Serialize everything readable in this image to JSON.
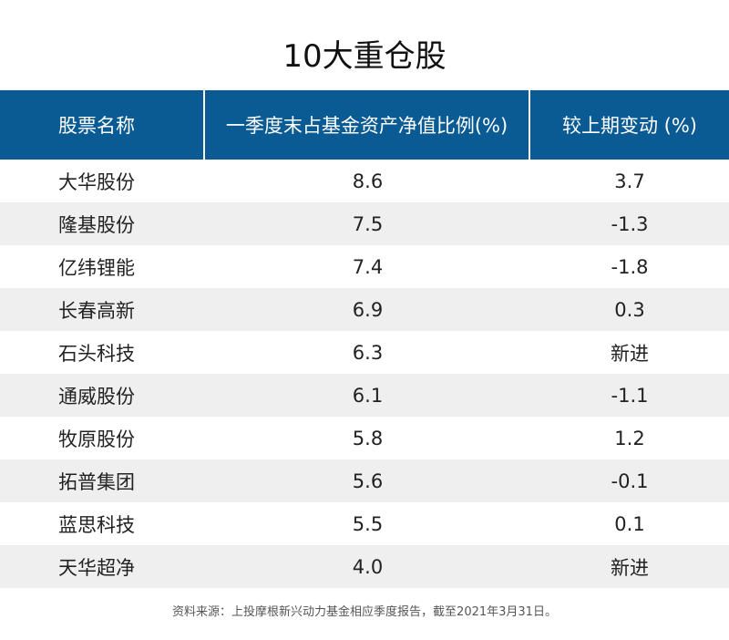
{
  "title": "10大重仓股",
  "table": {
    "headers": [
      "股票名称",
      "一季度末占基金资产净值比例(%)",
      "较上期变动 (%)"
    ],
    "rows": [
      [
        "大华股份",
        "8.6",
        "3.7"
      ],
      [
        "隆基股份",
        "7.5",
        "-1.3"
      ],
      [
        "亿纬锂能",
        "7.4",
        "-1.8"
      ],
      [
        "长春高新",
        "6.9",
        "0.3"
      ],
      [
        "石头科技",
        "6.3",
        "新进"
      ],
      [
        "通威股份",
        "6.1",
        "-1.1"
      ],
      [
        "牧原股份",
        "5.8",
        "1.2"
      ],
      [
        "拓普集团",
        "5.6",
        "-0.1"
      ],
      [
        "蓝思科技",
        "5.5",
        "0.1"
      ],
      [
        "天华超净",
        "4.0",
        "新进"
      ]
    ]
  },
  "footnote": "资料来源：上投摩根新兴动力基金相应季度报告，截至2021年3月31日。",
  "colors": {
    "header_bg": "#0a5a94",
    "stripe_bg": "#efefef"
  }
}
